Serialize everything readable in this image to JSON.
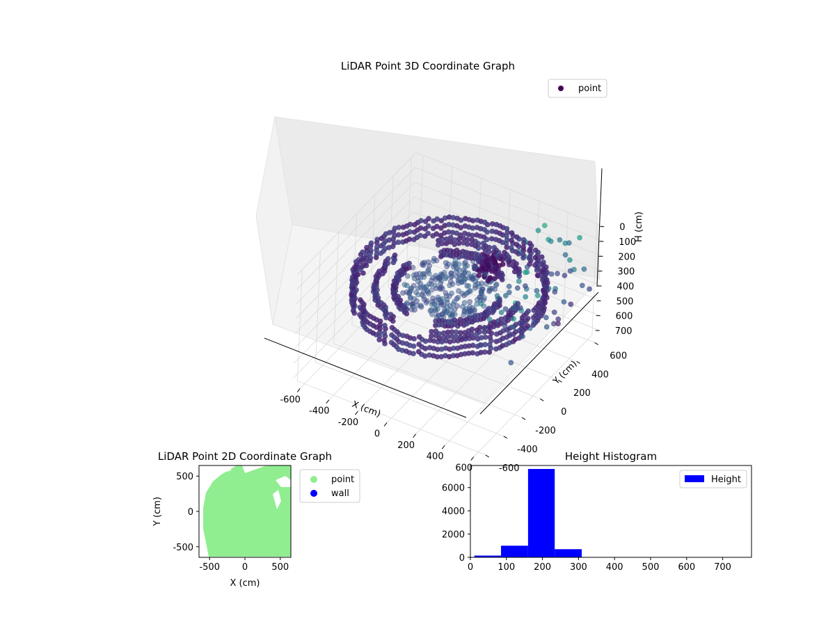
{
  "chart_data": [
    {
      "type": "scatter",
      "projection": "3d",
      "title": "LiDAR Point 3D Coordinate Graph",
      "xlabel": "X (cm)",
      "ylabel": "Y (cm)",
      "zlabel": "H (cm)",
      "xlim": [
        -650,
        650
      ],
      "ylim": [
        -650,
        650
      ],
      "zlim": [
        750,
        0
      ],
      "xticks": [
        "-600",
        "-400",
        "-200",
        "0",
        "200",
        "400",
        "600"
      ],
      "yticks": [
        "-600",
        "-400",
        "-200",
        "0",
        "200",
        "400",
        "600"
      ],
      "zticks": [
        "0",
        "100",
        "200",
        "300",
        "400",
        "500",
        "600",
        "700"
      ],
      "colormap": "viridis",
      "grid": true,
      "legend": {
        "position": "top-right",
        "entries": [
          {
            "name": "point",
            "color": "#440154"
          }
        ]
      },
      "series": [
        {
          "name": "point",
          "description_of_data": "outer wall ring radius ~560 cm at heights 200–300, inner floor points, sparse high points on the far right",
          "rings": [
            {
              "radius": 560,
              "h_top": 200,
              "h_bottom": 300
            },
            {
              "radius": 430,
              "h_top": 240,
              "h_bottom": 270
            },
            {
              "radius": 320,
              "h_top": 240,
              "h_bottom": 270
            }
          ]
        }
      ]
    },
    {
      "type": "scatter",
      "title": "LiDAR Point 2D Coordinate Graph",
      "xlabel": "X (cm)",
      "ylabel": "Y (cm)",
      "xlim": [
        -650,
        650
      ],
      "ylim": [
        -650,
        650
      ],
      "xticks": [
        "-500",
        "0",
        "500"
      ],
      "yticks": [
        "-500",
        "0",
        "500"
      ],
      "legend": {
        "position": "outside-right",
        "entries": [
          {
            "name": "point",
            "color": "#90ee90"
          },
          {
            "name": "wall",
            "color": "#0000ff"
          }
        ]
      }
    },
    {
      "type": "bar",
      "subtype": "histogram",
      "title": "Height Histogram",
      "xlim": [
        0,
        780
      ],
      "ylim": [
        0,
        7900
      ],
      "xticks": [
        "0",
        "100",
        "200",
        "300",
        "400",
        "500",
        "600",
        "700"
      ],
      "yticks": [
        "0",
        "2000",
        "4000",
        "6000"
      ],
      "bin_edges": [
        11,
        85,
        160,
        234,
        309,
        383,
        458,
        532,
        607,
        681,
        756
      ],
      "values": [
        150,
        1000,
        7600,
        700,
        10,
        5,
        5,
        3,
        3,
        2
      ],
      "color": "#0000ff",
      "legend": {
        "position": "top-right",
        "entries": [
          {
            "name": "Height",
            "color": "#0000ff"
          }
        ]
      }
    }
  ]
}
